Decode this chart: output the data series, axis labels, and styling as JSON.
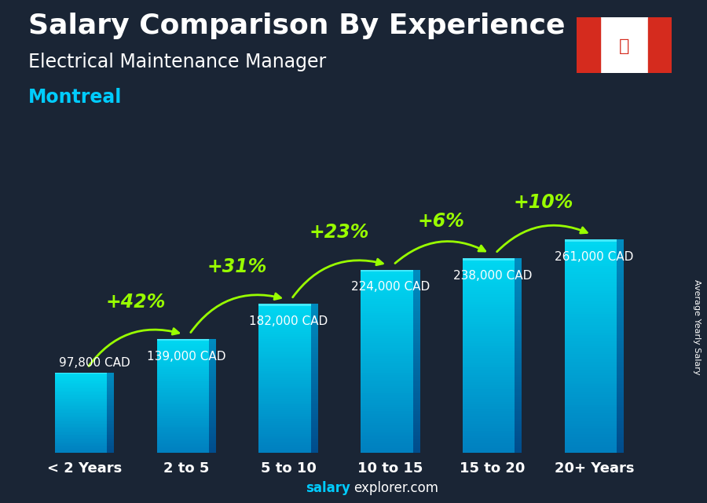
{
  "title_line1": "Salary Comparison By Experience",
  "subtitle": "Electrical Maintenance Manager",
  "city": "Montreal",
  "watermark_salary": "salary",
  "watermark_rest": "explorer.com",
  "ylabel_rotated": "Average Yearly Salary",
  "categories": [
    "< 2 Years",
    "2 to 5",
    "5 to 10",
    "10 to 15",
    "15 to 20",
    "20+ Years"
  ],
  "values": [
    97800,
    139000,
    182000,
    224000,
    238000,
    261000
  ],
  "value_labels": [
    "97,800 CAD",
    "139,000 CAD",
    "182,000 CAD",
    "224,000 CAD",
    "238,000 CAD",
    "261,000 CAD"
  ],
  "pct_labels": [
    null,
    "+42%",
    "+31%",
    "+23%",
    "+6%",
    "+10%"
  ],
  "bar_color_top": "#29CFFF",
  "bar_color_mid": "#00AADD",
  "bar_color_bottom": "#0077BB",
  "bar_highlight": "#55DDFF",
  "bg_color": "#1a2535",
  "title_color": "#FFFFFF",
  "subtitle_color": "#FFFFFF",
  "city_color": "#00CCFF",
  "value_label_color": "#FFFFFF",
  "pct_color": "#99FF00",
  "arrow_color": "#99FF00",
  "watermark_salary_color": "#00CCFF",
  "watermark_rest_color": "#FFFFFF",
  "ylim_max": 320000,
  "title_fontsize": 26,
  "subtitle_fontsize": 17,
  "city_fontsize": 17,
  "value_fontsize": 11,
  "pct_fontsize": 17,
  "cat_fontsize": 13,
  "bar_width": 0.58
}
